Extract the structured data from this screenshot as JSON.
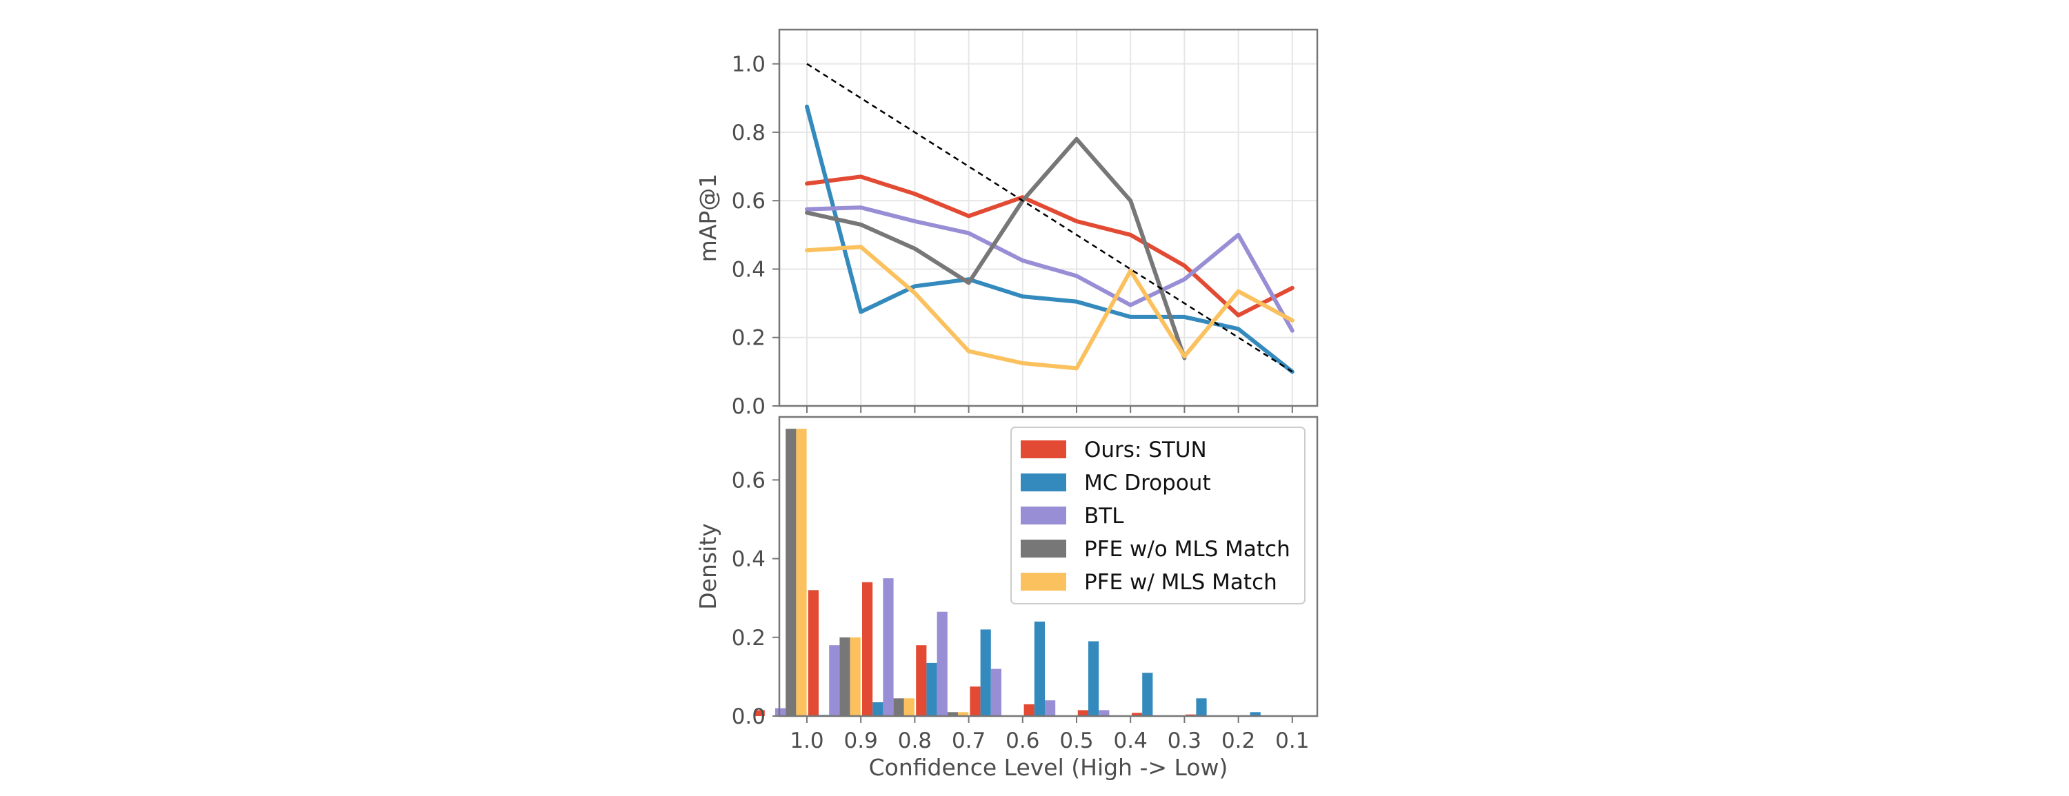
{
  "chart_data": [
    {
      "type": "line",
      "title": "",
      "xlabel": "",
      "ylabel": "mAP@1",
      "x_categories": [
        "1.0",
        "0.9",
        "0.8",
        "0.7",
        "0.6",
        "0.5",
        "0.4",
        "0.3",
        "0.2",
        "0.1"
      ],
      "ylim": [
        0.0,
        1.1
      ],
      "yticks": [
        "0.0",
        "0.2",
        "0.4",
        "0.6",
        "0.8",
        "1.0"
      ],
      "grid": true,
      "reference_line": {
        "style": "dashed",
        "color": "#000000",
        "values": [
          1.0,
          0.9,
          0.8,
          0.7,
          0.6,
          0.5,
          0.4,
          0.3,
          0.2,
          0.1
        ]
      },
      "series": [
        {
          "name": "Ours: STUN",
          "color": "#e24a33",
          "values": [
            0.65,
            0.67,
            0.62,
            0.555,
            0.61,
            0.54,
            0.5,
            0.41,
            0.265,
            0.345
          ]
        },
        {
          "name": "MC Dropout",
          "color": "#348abd",
          "values": [
            0.875,
            0.275,
            0.35,
            0.37,
            0.32,
            0.305,
            0.26,
            0.26,
            0.225,
            0.1
          ]
        },
        {
          "name": "BTL",
          "color": "#988ed5",
          "values": [
            0.575,
            0.58,
            0.54,
            0.505,
            0.425,
            0.38,
            0.295,
            0.37,
            0.5,
            0.22
          ]
        },
        {
          "name": "PFE w/o MLS Match",
          "color": "#777777",
          "values": [
            0.565,
            0.53,
            0.46,
            0.36,
            0.6,
            0.78,
            0.6,
            0.14,
            null,
            null
          ]
        },
        {
          "name": "PFE w/ MLS Match",
          "color": "#fbc15e",
          "values": [
            0.455,
            0.465,
            0.33,
            0.16,
            0.125,
            0.11,
            0.395,
            0.145,
            0.335,
            0.25
          ]
        }
      ]
    },
    {
      "type": "bar",
      "title": "",
      "xlabel": "Confidence Level (High -> Low)",
      "ylabel": "Density",
      "categories": [
        "1.0",
        "0.9",
        "0.8",
        "0.7",
        "0.6",
        "0.5",
        "0.4",
        "0.3",
        "0.2",
        "0.1"
      ],
      "ylim": [
        0.0,
        0.76
      ],
      "yticks": [
        "0.0",
        "0.2",
        "0.4",
        "0.6"
      ],
      "grid": false,
      "legend": "top-right",
      "series": [
        {
          "name": "Ours: STUN",
          "color": "#e24a33",
          "values": [
            0.015,
            0.32,
            0.34,
            0.18,
            0.075,
            0.03,
            0.015,
            0.008,
            0.004,
            0.002
          ]
        },
        {
          "name": "MC Dropout",
          "color": "#348abd",
          "values": [
            0.0,
            0.003,
            0.035,
            0.135,
            0.22,
            0.24,
            0.19,
            0.11,
            0.045,
            0.01
          ]
        },
        {
          "name": "BTL",
          "color": "#988ed5",
          "values": [
            0.02,
            0.18,
            0.35,
            0.265,
            0.12,
            0.04,
            0.015,
            0.0,
            0.0,
            0.0
          ]
        },
        {
          "name": "PFE w/o MLS Match",
          "color": "#777777",
          "values": [
            0.73,
            0.2,
            0.045,
            0.01,
            0.0,
            0.0,
            0.0,
            0.0,
            0.0,
            0.0
          ]
        },
        {
          "name": "PFE w/ MLS Match",
          "color": "#fbc15e",
          "values": [
            0.73,
            0.2,
            0.045,
            0.01,
            0.0,
            0.0,
            0.0,
            0.0,
            0.0,
            0.0
          ]
        }
      ]
    }
  ]
}
